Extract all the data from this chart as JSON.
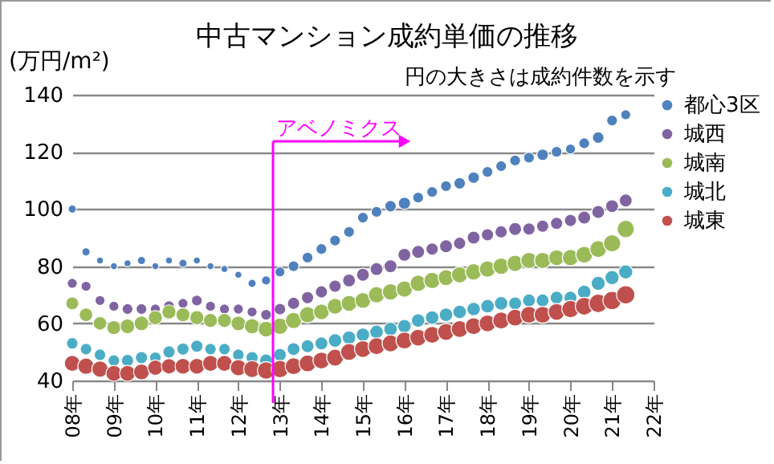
{
  "chart_data": {
    "type": "bubble",
    "title": "中古マンション成約単価の推移",
    "ylabel": "(万円/m²)",
    "annotations": [
      "円の大きさは成約件数を示す"
    ],
    "x": [
      "2008-01",
      "2008-05",
      "2008-09",
      "2009-01",
      "2009-05",
      "2009-09",
      "2010-01",
      "2010-05",
      "2010-09",
      "2011-01",
      "2011-05",
      "2011-09",
      "2012-01",
      "2012-05",
      "2012-09",
      "2013-01",
      "2013-05",
      "2013-09",
      "2014-01",
      "2014-05",
      "2014-09",
      "2015-01",
      "2015-05",
      "2015-09",
      "2016-01",
      "2016-05",
      "2016-09",
      "2017-01",
      "2017-05",
      "2017-09",
      "2018-01",
      "2018-05",
      "2018-09",
      "2019-01",
      "2019-05",
      "2019-09",
      "2020-01",
      "2020-05",
      "2020-09",
      "2021-01",
      "2021-05"
    ],
    "xlim": [
      "2008",
      "2022"
    ],
    "xticks": [
      {
        "value": "2008",
        "label": "08年"
      },
      {
        "value": "2009",
        "label": "09年"
      },
      {
        "value": "2010",
        "label": "10年"
      },
      {
        "value": "2011",
        "label": "11年"
      },
      {
        "value": "2012",
        "label": "12年"
      },
      {
        "value": "2013",
        "label": "13年"
      },
      {
        "value": "2014",
        "label": "14年"
      },
      {
        "value": "2015",
        "label": "15年"
      },
      {
        "value": "2016",
        "label": "16年"
      },
      {
        "value": "2017",
        "label": "17年"
      },
      {
        "value": "2018",
        "label": "18年"
      },
      {
        "value": "2019",
        "label": "19年"
      },
      {
        "value": "2020",
        "label": "20年"
      },
      {
        "value": "2021",
        "label": "21年"
      },
      {
        "value": "2022",
        "label": "22年"
      }
    ],
    "ylim": [
      40,
      140
    ],
    "yticks": [
      40,
      60,
      80,
      100,
      120,
      140
    ],
    "grid": "y",
    "legend": "right",
    "ref_lines": [
      {
        "axis": "x",
        "value": "2012-11",
        "label": "アベノミクス",
        "color": "#ff00ff"
      }
    ],
    "series": [
      {
        "name": "都心3区",
        "color": "#4f81bd",
        "values": [
          100,
          85,
          82,
          80,
          81,
          82,
          80,
          82,
          81,
          82,
          80,
          79,
          77,
          74,
          75,
          78,
          80,
          83,
          86,
          89,
          92,
          97,
          99,
          101,
          102,
          104,
          106,
          108,
          109,
          111,
          113,
          115,
          117,
          118,
          119,
          120,
          121,
          123,
          125,
          131,
          133
        ],
        "sizes": [
          0.2,
          0.2,
          0.15,
          0.15,
          0.15,
          0.2,
          0.15,
          0.15,
          0.2,
          0.15,
          0.15,
          0.15,
          0.15,
          0.2,
          0.25,
          0.3,
          0.35,
          0.35,
          0.35,
          0.35,
          0.35,
          0.35,
          0.35,
          0.4,
          0.45,
          0.35,
          0.35,
          0.35,
          0.4,
          0.4,
          0.35,
          0.35,
          0.35,
          0.35,
          0.4,
          0.35,
          0.3,
          0.35,
          0.4,
          0.35,
          0.3
        ]
      },
      {
        "name": "城西",
        "color": "#8064a2",
        "values": [
          74,
          73,
          68,
          66,
          65,
          65,
          65,
          66,
          67,
          68,
          66,
          65,
          65,
          64,
          63,
          65,
          67,
          69,
          71,
          73,
          75,
          77,
          79,
          80,
          84,
          85,
          86,
          87,
          88,
          90,
          91,
          92,
          93,
          93,
          94,
          95,
          96,
          97,
          99,
          101,
          103
        ],
        "sizes": [
          0.3,
          0.3,
          0.3,
          0.3,
          0.35,
          0.35,
          0.3,
          0.35,
          0.3,
          0.35,
          0.3,
          0.3,
          0.3,
          0.3,
          0.35,
          0.4,
          0.45,
          0.45,
          0.45,
          0.45,
          0.5,
          0.5,
          0.5,
          0.5,
          0.5,
          0.5,
          0.45,
          0.5,
          0.45,
          0.5,
          0.45,
          0.45,
          0.5,
          0.45,
          0.45,
          0.45,
          0.45,
          0.5,
          0.5,
          0.5,
          0.5
        ]
      },
      {
        "name": "城南",
        "color": "#9bbb59",
        "values": [
          67,
          63,
          60,
          58.5,
          59,
          60,
          62,
          64,
          63,
          62,
          61,
          61,
          60,
          59,
          58,
          59,
          61,
          63,
          64,
          66,
          67,
          68,
          70,
          71,
          72,
          74,
          75,
          76,
          77,
          78,
          79,
          80,
          81,
          82,
          82,
          83,
          83,
          84,
          86,
          88,
          93
        ],
        "sizes": [
          0.5,
          0.55,
          0.55,
          0.6,
          0.65,
          0.65,
          0.6,
          0.6,
          0.6,
          0.6,
          0.6,
          0.6,
          0.65,
          0.7,
          0.75,
          0.8,
          0.8,
          0.8,
          0.75,
          0.75,
          0.75,
          0.75,
          0.8,
          0.8,
          0.8,
          0.8,
          0.8,
          0.75,
          0.8,
          0.8,
          0.8,
          0.8,
          0.8,
          0.8,
          0.8,
          0.75,
          0.8,
          0.85,
          0.85,
          0.9,
          0.9
        ]
      },
      {
        "name": "城北",
        "color": "#4bacc6",
        "values": [
          53,
          51,
          49,
          47,
          47,
          48,
          48,
          50,
          51,
          52,
          51,
          51,
          49,
          48,
          47,
          49,
          51,
          52,
          53,
          54,
          55,
          56,
          57,
          58,
          59,
          61,
          62,
          63,
          64,
          65,
          66,
          67,
          67,
          68,
          68,
          69,
          69,
          71,
          74,
          76,
          78
        ],
        "sizes": [
          0.4,
          0.4,
          0.4,
          0.4,
          0.45,
          0.45,
          0.4,
          0.45,
          0.45,
          0.45,
          0.4,
          0.4,
          0.4,
          0.45,
          0.5,
          0.5,
          0.5,
          0.5,
          0.5,
          0.55,
          0.55,
          0.55,
          0.55,
          0.55,
          0.55,
          0.55,
          0.55,
          0.55,
          0.55,
          0.55,
          0.55,
          0.55,
          0.5,
          0.5,
          0.5,
          0.5,
          0.5,
          0.55,
          0.6,
          0.6,
          0.6
        ]
      },
      {
        "name": "城東",
        "color": "#c0504d",
        "values": [
          46,
          45,
          44,
          42.5,
          42.5,
          43,
          44.5,
          45,
          45,
          45,
          46,
          46,
          44.5,
          44,
          43.5,
          44,
          45,
          46,
          47,
          48,
          50,
          51,
          52,
          53,
          54,
          55,
          56,
          57,
          58,
          59,
          60,
          61,
          62,
          63,
          63,
          64,
          65,
          66,
          67,
          68,
          70
        ],
        "sizes": [
          0.75,
          0.8,
          0.8,
          0.75,
          0.75,
          0.75,
          0.7,
          0.7,
          0.75,
          0.75,
          0.75,
          0.75,
          0.8,
          0.85,
          0.9,
          0.9,
          0.85,
          0.85,
          0.85,
          0.85,
          0.85,
          0.85,
          0.85,
          0.85,
          0.85,
          0.85,
          0.85,
          0.85,
          0.85,
          0.85,
          0.85,
          0.85,
          0.85,
          0.85,
          0.85,
          0.85,
          0.9,
          0.95,
          1,
          1,
          1
        ]
      }
    ]
  }
}
